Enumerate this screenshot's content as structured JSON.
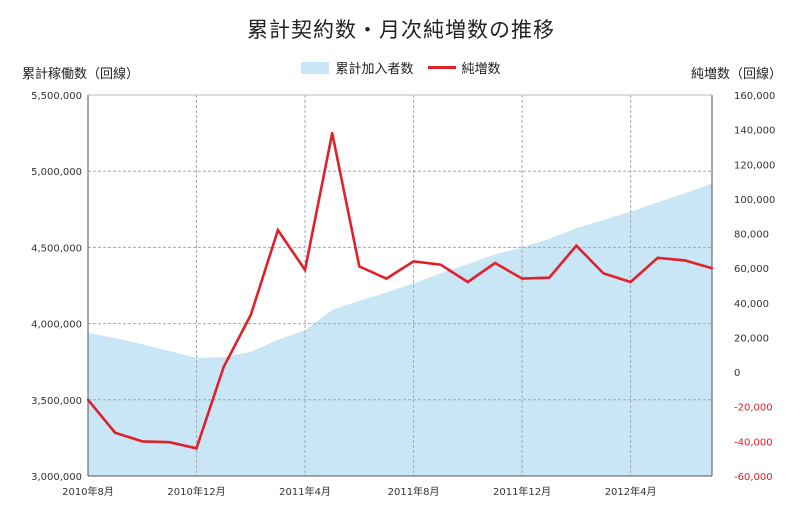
{
  "chart_data": {
    "type": "area+line",
    "title": "累計契約数・月次純増数の推移",
    "ylabel_left": "累計稼働数（回線）",
    "ylabel_right": "純増数（回線）",
    "legend": [
      "累計加入者数",
      "純増数"
    ],
    "legend_position": "top-center",
    "grid": true,
    "colors": {
      "area": "#c9e6f7",
      "line": "#e0202a",
      "negative_tick": "#e0202a",
      "grid": "#a8a8a8"
    },
    "x_tick_labels": [
      {
        "index": 0,
        "label": "2010年8月"
      },
      {
        "index": 4,
        "label": "2010年12月"
      },
      {
        "index": 8,
        "label": "2011年4月"
      },
      {
        "index": 12,
        "label": "2011年8月"
      },
      {
        "index": 16,
        "label": "2011年12月"
      },
      {
        "index": 20,
        "label": "2012年4月"
      }
    ],
    "left_axis": {
      "ylim": [
        3000000,
        5500000
      ],
      "ticks": [
        {
          "value": 3000000,
          "label": "3,000,000"
        },
        {
          "value": 3500000,
          "label": "3,500,000"
        },
        {
          "value": 4000000,
          "label": "4,000,000"
        },
        {
          "value": 4500000,
          "label": "4,500,000"
        },
        {
          "value": 5000000,
          "label": "5,000,000"
        },
        {
          "value": 5500000,
          "label": "5,500,000"
        }
      ]
    },
    "right_axis": {
      "ylim": [
        -60000,
        160000
      ],
      "ticks": [
        {
          "value": 160000,
          "label": "160,000"
        },
        {
          "value": 140000,
          "label": "140,000"
        },
        {
          "value": 120000,
          "label": "120,000"
        },
        {
          "value": 100000,
          "label": "100,000"
        },
        {
          "value": 80000,
          "label": "80,000"
        },
        {
          "value": 60000,
          "label": "60,000"
        },
        {
          "value": 40000,
          "label": "40,000"
        },
        {
          "value": 20000,
          "label": "20,000"
        },
        {
          "value": 0,
          "label": "0"
        },
        {
          "value": -20000,
          "label": "-20,000"
        },
        {
          "value": -40000,
          "label": "-40,000"
        },
        {
          "value": -60000,
          "label": "-60,000"
        }
      ]
    },
    "series": [
      {
        "name": "累計加入者数",
        "axis": "left",
        "kind": "area",
        "values": [
          3940000,
          3905000,
          3865000,
          3820000,
          3775000,
          3780000,
          3815000,
          3895000,
          3955000,
          4090000,
          4150000,
          4205000,
          4265000,
          4330000,
          4390000,
          4455000,
          4500000,
          4555000,
          4625000,
          4680000,
          4735000,
          4795000,
          4855000,
          4920000
        ]
      },
      {
        "name": "純増数",
        "axis": "right",
        "kind": "line",
        "values": [
          -16000,
          -35000,
          -40000,
          -40500,
          -44000,
          3000,
          33000,
          82000,
          59000,
          138000,
          61000,
          54000,
          64000,
          62000,
          52000,
          63000,
          54000,
          54500,
          73000,
          57000,
          52000,
          66000,
          64500,
          60000
        ]
      }
    ]
  }
}
